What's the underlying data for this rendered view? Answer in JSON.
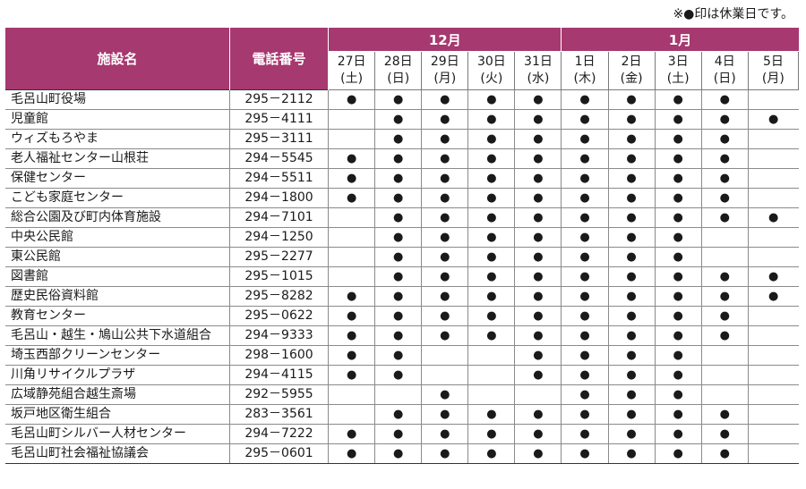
{
  "note": "※●印は休業日です。",
  "header": {
    "facility": "施設名",
    "phone": "電話番号",
    "months": [
      "12月",
      "1月"
    ],
    "days": [
      {
        "d": "27日",
        "w": "(土)"
      },
      {
        "d": "28日",
        "w": "(日)"
      },
      {
        "d": "29日",
        "w": "(月)"
      },
      {
        "d": "30日",
        "w": "(火)"
      },
      {
        "d": "31日",
        "w": "(水)"
      },
      {
        "d": "1日",
        "w": "(木)"
      },
      {
        "d": "2日",
        "w": "(金)"
      },
      {
        "d": "3日",
        "w": "(土)"
      },
      {
        "d": "4日",
        "w": "(日)"
      },
      {
        "d": "5日",
        "w": "(月)"
      }
    ]
  },
  "mark": "●",
  "rows": [
    {
      "name": "毛呂山町役場",
      "phone": "295－2112",
      "closed": [
        1,
        1,
        1,
        1,
        1,
        1,
        1,
        1,
        1,
        0
      ]
    },
    {
      "name": "児童館",
      "phone": "295－4111",
      "closed": [
        0,
        1,
        1,
        1,
        1,
        1,
        1,
        1,
        1,
        1
      ]
    },
    {
      "name": "ウィズもろやま",
      "phone": "295－3111",
      "closed": [
        0,
        1,
        1,
        1,
        1,
        1,
        1,
        1,
        1,
        0
      ]
    },
    {
      "name": "老人福祉センター山根荘",
      "phone": "294－5545",
      "closed": [
        1,
        1,
        1,
        1,
        1,
        1,
        1,
        1,
        1,
        0
      ]
    },
    {
      "name": "保健センター",
      "phone": "294－5511",
      "closed": [
        1,
        1,
        1,
        1,
        1,
        1,
        1,
        1,
        1,
        0
      ]
    },
    {
      "name": "こども家庭センター",
      "phone": "294－1800",
      "closed": [
        1,
        1,
        1,
        1,
        1,
        1,
        1,
        1,
        1,
        0
      ]
    },
    {
      "name": "総合公園及び町内体育施設",
      "phone": "294－7101",
      "closed": [
        0,
        1,
        1,
        1,
        1,
        1,
        1,
        1,
        1,
        1
      ]
    },
    {
      "name": "中央公民館",
      "phone": "294－1250",
      "closed": [
        0,
        1,
        1,
        1,
        1,
        1,
        1,
        1,
        0,
        0
      ]
    },
    {
      "name": "東公民館",
      "phone": "295－2277",
      "closed": [
        0,
        1,
        1,
        1,
        1,
        1,
        1,
        1,
        0,
        0
      ]
    },
    {
      "name": "図書館",
      "phone": "295－1015",
      "closed": [
        0,
        1,
        1,
        1,
        1,
        1,
        1,
        1,
        1,
        1
      ]
    },
    {
      "name": "歴史民俗資料館",
      "phone": "295－8282",
      "closed": [
        1,
        1,
        1,
        1,
        1,
        1,
        1,
        1,
        1,
        1
      ]
    },
    {
      "name": "教育センター",
      "phone": "295－0622",
      "closed": [
        1,
        1,
        1,
        1,
        1,
        1,
        1,
        1,
        1,
        0
      ]
    },
    {
      "name": "毛呂山・越生・鳩山公共下水道組合",
      "phone": "294－9333",
      "closed": [
        1,
        1,
        1,
        1,
        1,
        1,
        1,
        1,
        1,
        0
      ]
    },
    {
      "name": "埼玉西部クリーンセンター",
      "phone": "298－1600",
      "closed": [
        1,
        1,
        0,
        0,
        1,
        1,
        1,
        1,
        0,
        0
      ]
    },
    {
      "name": "川角リサイクルプラザ",
      "phone": "294－4115",
      "closed": [
        1,
        1,
        0,
        0,
        1,
        1,
        1,
        1,
        0,
        0
      ]
    },
    {
      "name": "広域静苑組合越生斎場",
      "phone": "292－5955",
      "closed": [
        0,
        0,
        1,
        0,
        0,
        1,
        1,
        1,
        0,
        0
      ]
    },
    {
      "name": "坂戸地区衛生組合",
      "phone": "283－3561",
      "closed": [
        0,
        1,
        1,
        1,
        1,
        1,
        1,
        1,
        1,
        0
      ]
    },
    {
      "name": "毛呂山町シルバー人材センター",
      "phone": "294－7222",
      "closed": [
        1,
        1,
        1,
        1,
        1,
        1,
        1,
        1,
        1,
        0
      ]
    },
    {
      "name": "毛呂山町社会福祉協議会",
      "phone": "295－0601",
      "closed": [
        1,
        1,
        1,
        1,
        1,
        1,
        1,
        1,
        1,
        0
      ]
    }
  ]
}
